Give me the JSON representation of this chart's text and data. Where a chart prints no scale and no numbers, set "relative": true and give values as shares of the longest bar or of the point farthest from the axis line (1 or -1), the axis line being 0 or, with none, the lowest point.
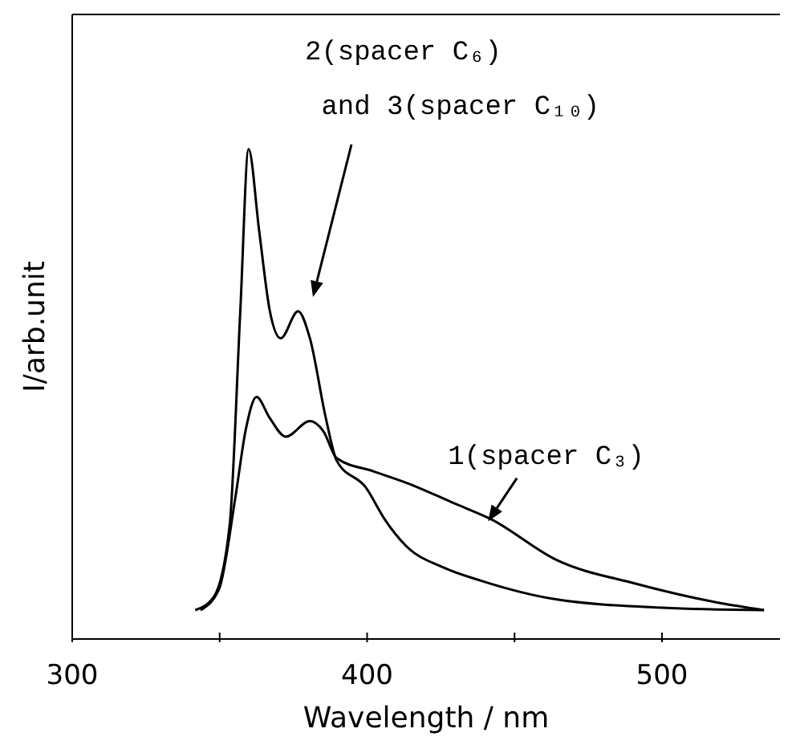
{
  "chart_data": {
    "type": "line",
    "relative": true,
    "xlabel": "Wavelength / nm",
    "ylabel": "I/arb.unit",
    "xlim": [
      300,
      540
    ],
    "xticks": [
      300,
      {
        "value": 350,
        "label": null
      },
      400,
      {
        "value": 450,
        "label": null
      },
      500
    ],
    "marker": "none",
    "line_style": "solid",
    "grid": false,
    "legend": false,
    "series": [
      {
        "color": "#000000",
        "x": [
          341.7,
          348,
          353.4,
          357,
          359.8,
          363.4,
          367,
          370.7,
          376.6,
          380.6,
          386,
          389.7,
          399.6,
          406,
          413.2,
          425.9,
          438.6,
          464,
          500,
          534.6
        ],
        "values": [
          0.059,
          0.086,
          0.233,
          0.67,
          1.0,
          0.833,
          0.67,
          0.614,
          0.669,
          0.614,
          0.451,
          0.364,
          0.309,
          0.244,
          0.19,
          0.146,
          0.119,
          0.081,
          0.064,
          0.059
        ]
      },
      {
        "color": "#000000",
        "x": [
          343.5,
          349.8,
          355.3,
          358.9,
          362.5,
          367,
          372.4,
          380.6,
          385.2,
          389.7,
          402.3,
          415,
          429.5,
          442.2,
          464,
          491,
          518.3,
          534.6
        ],
        "values": [
          0.059,
          0.102,
          0.288,
          0.429,
          0.494,
          0.451,
          0.413,
          0.445,
          0.424,
          0.369,
          0.342,
          0.315,
          0.277,
          0.244,
          0.162,
          0.113,
          0.075,
          0.059
        ]
      }
    ],
    "annotations": [
      "2(spacer C₆)\n and 3(spacer C₁₀)",
      {
        "text": "1(spacer C₃)",
        "x": 441,
        "y": 0.24
      }
    ]
  }
}
